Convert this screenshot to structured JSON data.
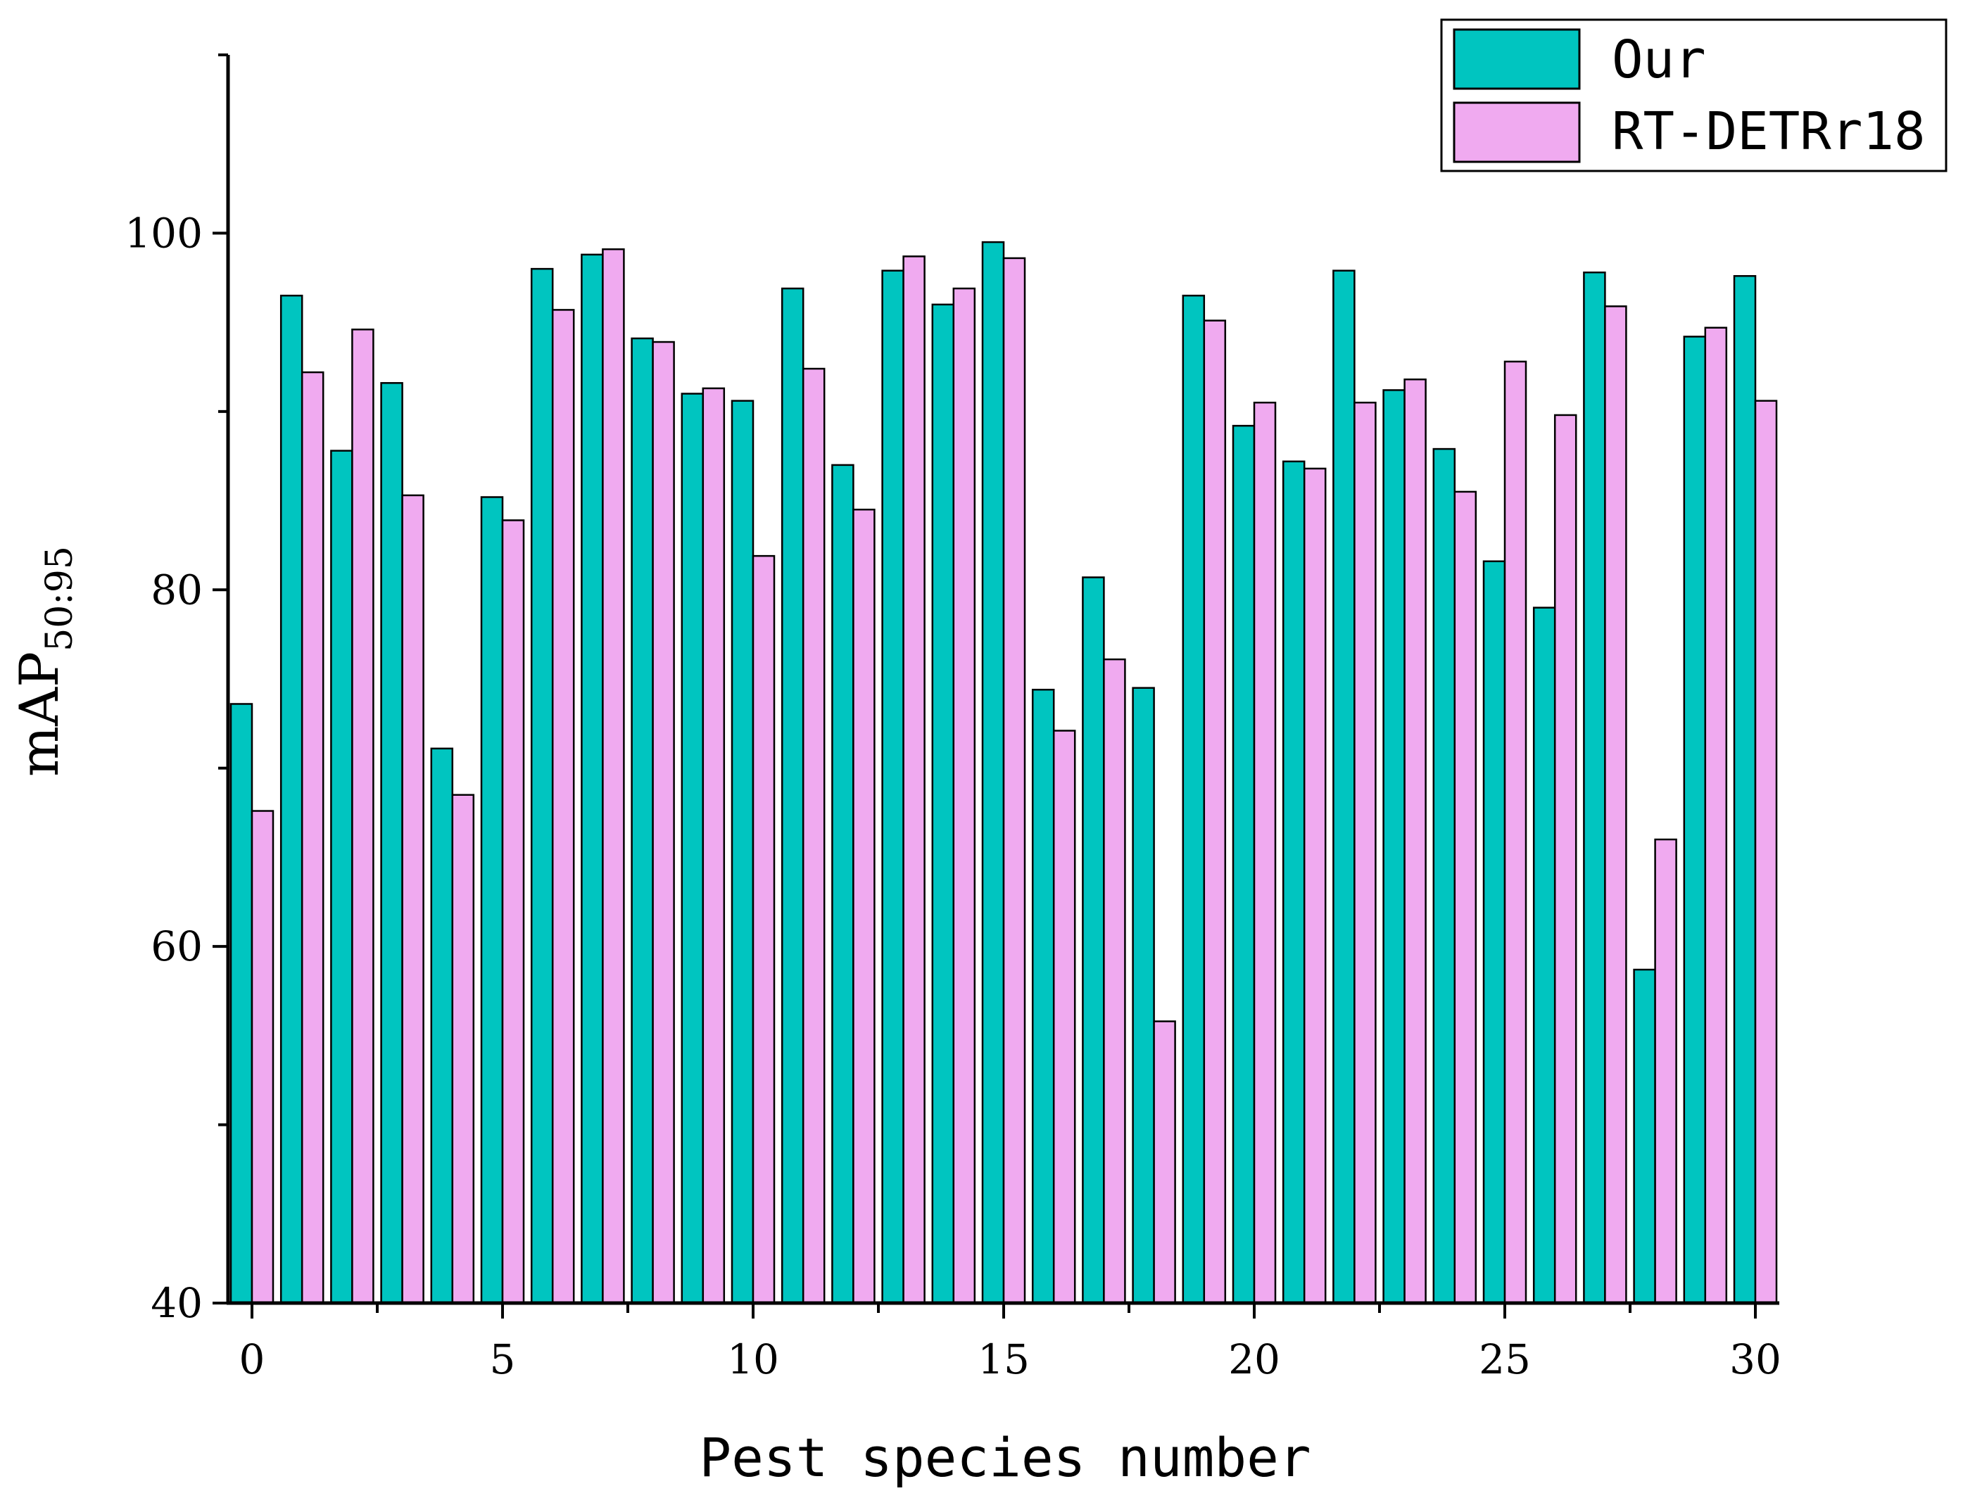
{
  "chart_data": {
    "type": "bar",
    "xlabel": "Pest species number",
    "ylabel_main": "mAP",
    "ylabel_sub": "50:95",
    "ylim": [
      40,
      110
    ],
    "y_ticks": [
      40,
      60,
      80,
      100
    ],
    "x_ticks": [
      0,
      5,
      10,
      15,
      20,
      25,
      30
    ],
    "legend_position": "top-right",
    "categories": [
      0,
      1,
      2,
      3,
      4,
      5,
      6,
      7,
      8,
      9,
      10,
      11,
      12,
      13,
      14,
      15,
      16,
      17,
      18,
      19,
      20,
      21,
      22,
      23,
      24,
      25,
      26,
      27,
      28,
      29,
      30
    ],
    "series": [
      {
        "name": "Our",
        "color": "#00c5c0",
        "values": [
          73.6,
          96.5,
          87.8,
          91.6,
          71.1,
          85.2,
          98.0,
          98.8,
          94.1,
          91.0,
          90.6,
          96.9,
          87.0,
          97.9,
          96.0,
          99.5,
          74.4,
          80.7,
          74.5,
          96.5,
          89.2,
          87.2,
          97.9,
          91.2,
          87.9,
          81.6,
          79.0,
          97.8,
          58.7,
          94.2,
          97.6
        ]
      },
      {
        "name": "RT-DETRr18",
        "color": "#f0aaf0",
        "values": [
          67.6,
          92.2,
          94.6,
          85.3,
          68.5,
          83.9,
          95.7,
          99.1,
          93.9,
          91.3,
          81.9,
          92.4,
          84.5,
          98.7,
          96.9,
          98.6,
          72.1,
          76.1,
          55.8,
          95.1,
          90.5,
          86.8,
          90.5,
          91.8,
          85.5,
          92.8,
          89.8,
          95.9,
          66.0,
          94.7,
          90.6
        ]
      }
    ]
  }
}
